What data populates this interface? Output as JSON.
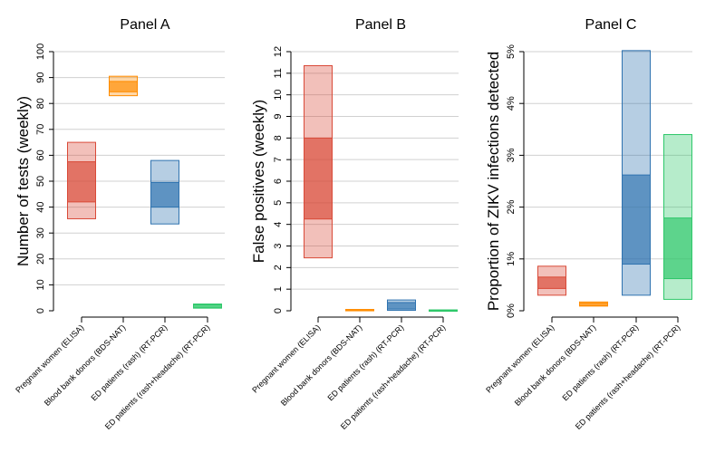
{
  "colors": {
    "pregnant": "#d94a38",
    "blood": "#ff8c00",
    "rash": "#2f73b0",
    "headache": "#2ec86a"
  },
  "chart_data": [
    {
      "type": "range",
      "title": "Panel A",
      "ylabel": "Number of tests (weekly)",
      "ylim": [
        0,
        100
      ],
      "yticks": [
        "0",
        "10",
        "20",
        "30",
        "40",
        "50",
        "60",
        "70",
        "80",
        "90",
        "100"
      ],
      "ytick_values": [
        0,
        10,
        20,
        30,
        40,
        50,
        60,
        70,
        80,
        90,
        100
      ],
      "categories": [
        "Pregnant women (ELISA)",
        "Blood bank donors (BDS-NAT)",
        "ED patients (rash) (RT-PCR)",
        "ED patients (rash+headache) (RT-PCR)"
      ],
      "outer": [
        [
          35.5,
          65
        ],
        [
          83,
          90.5
        ],
        [
          33.5,
          58
        ],
        [
          1,
          2.6
        ]
      ],
      "inner": [
        [
          42,
          57.5
        ],
        [
          84.5,
          88.5
        ],
        [
          40,
          49.5
        ],
        [
          1.3,
          2.3
        ]
      ]
    },
    {
      "type": "range",
      "title": "Panel B",
      "ylabel": "False positives (weekly)",
      "ylim": [
        0,
        12
      ],
      "yticks": [
        "0",
        "1",
        "2",
        "3",
        "4",
        "5",
        "6",
        "7",
        "8",
        "9",
        "10",
        "11",
        "12"
      ],
      "ytick_values": [
        0,
        1,
        2,
        3,
        4,
        5,
        6,
        7,
        8,
        9,
        10,
        11,
        12
      ],
      "categories": [
        "Pregnant women (ELISA)",
        "Blood bank donors (BDS-NAT)",
        "ED patients (rash) (RT-PCR)",
        "ED patients (rash+headache) (RT-PCR)"
      ],
      "outer": [
        [
          2.45,
          11.35
        ],
        [
          0.0,
          0.06
        ],
        [
          0.02,
          0.5
        ],
        [
          0.0,
          0.04
        ]
      ],
      "inner": [
        [
          4.25,
          8.0
        ],
        [
          0.01,
          0.05
        ],
        [
          0.08,
          0.38
        ],
        [
          0.01,
          0.03
        ]
      ]
    },
    {
      "type": "range",
      "title": "Panel C",
      "ylabel": "Proportion of ZIKV infections detected",
      "ylim": [
        0,
        5
      ],
      "yticks": [
        "0%",
        "1%",
        "2%",
        "3%",
        "4%",
        "5%"
      ],
      "ytick_values": [
        0,
        1,
        2,
        3,
        4,
        5
      ],
      "categories": [
        "Pregnant women (ELISA)",
        "Blood bank donors (BDS-NAT)",
        "ED patients (rash) (RT-PCR)",
        "ED patients (rash+headache) (RT-PCR)"
      ],
      "outer": [
        [
          0.3,
          0.86
        ],
        [
          0.09,
          0.17
        ],
        [
          0.3,
          5.02
        ],
        [
          0.22,
          3.4
        ]
      ],
      "inner": [
        [
          0.43,
          0.65
        ],
        [
          0.1,
          0.15
        ],
        [
          0.9,
          2.62
        ],
        [
          0.62,
          1.79
        ]
      ]
    }
  ]
}
